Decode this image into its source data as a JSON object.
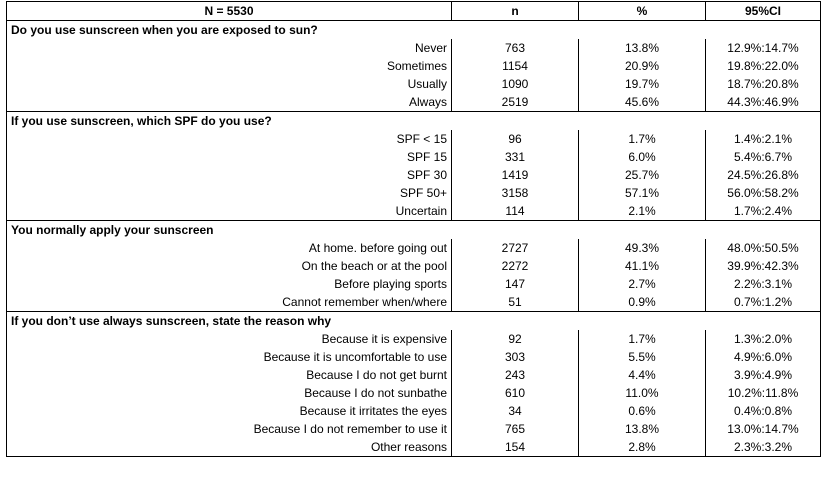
{
  "header": {
    "n_total": "N = 5530",
    "col_n": "n",
    "col_pct": "%",
    "col_ci": "95%CI"
  },
  "sections": [
    {
      "title": "Do you use sunscreen when you are exposed to sun?",
      "rows": [
        {
          "label": "Never",
          "n": "763",
          "pct": "13.8%",
          "ci": "12.9%:14.7%"
        },
        {
          "label": "Sometimes",
          "n": "1154",
          "pct": "20.9%",
          "ci": "19.8%:22.0%"
        },
        {
          "label": "Usually",
          "n": "1090",
          "pct": "19.7%",
          "ci": "18.7%:20.8%"
        },
        {
          "label": "Always",
          "n": "2519",
          "pct": "45.6%",
          "ci": "44.3%:46.9%"
        }
      ]
    },
    {
      "title": "If you use sunscreen, which SPF do you use?",
      "rows": [
        {
          "label": "SPF < 15",
          "n": "96",
          "pct": "1.7%",
          "ci": "1.4%:2.1%"
        },
        {
          "label": "SPF 15",
          "n": "331",
          "pct": "6.0%",
          "ci": "5.4%:6.7%"
        },
        {
          "label": "SPF 30",
          "n": "1419",
          "pct": "25.7%",
          "ci": "24.5%:26.8%"
        },
        {
          "label": "SPF 50+",
          "n": "3158",
          "pct": "57.1%",
          "ci": "56.0%:58.2%"
        },
        {
          "label": "Uncertain",
          "n": "114",
          "pct": "2.1%",
          "ci": "1.7%:2.4%"
        }
      ]
    },
    {
      "title": "You normally apply your sunscreen",
      "rows": [
        {
          "label": "At home. before going out",
          "n": "2727",
          "pct": "49.3%",
          "ci": "48.0%:50.5%"
        },
        {
          "label": "On the beach or at the pool",
          "n": "2272",
          "pct": "41.1%",
          "ci": "39.9%:42.3%"
        },
        {
          "label": "Before playing sports",
          "n": "147",
          "pct": "2.7%",
          "ci": "2.2%:3.1%"
        },
        {
          "label": "Cannot remember when/where",
          "n": "51",
          "pct": "0.9%",
          "ci": "0.7%:1.2%"
        }
      ]
    },
    {
      "title": "If you don’t use always sunscreen, state the reason why",
      "rows": [
        {
          "label": "Because it is expensive",
          "n": "92",
          "pct": "1.7%",
          "ci": "1.3%:2.0%"
        },
        {
          "label": "Because it is uncomfortable to use",
          "n": "303",
          "pct": "5.5%",
          "ci": "4.9%:6.0%"
        },
        {
          "label": "Because I do not get burnt",
          "n": "243",
          "pct": "4.4%",
          "ci": "3.9%:4.9%"
        },
        {
          "label": "Because I do not sunbathe",
          "n": "610",
          "pct": "11.0%",
          "ci": "10.2%:11.8%"
        },
        {
          "label": "Because it irritates the eyes",
          "n": "34",
          "pct": "0.6%",
          "ci": "0.4%:0.8%"
        },
        {
          "label": "Because I do not remember to use it",
          "n": "765",
          "pct": "13.8%",
          "ci": "13.0%:14.7%"
        },
        {
          "label": "Other reasons",
          "n": "154",
          "pct": "2.8%",
          "ci": "2.3%:3.2%"
        }
      ]
    }
  ]
}
